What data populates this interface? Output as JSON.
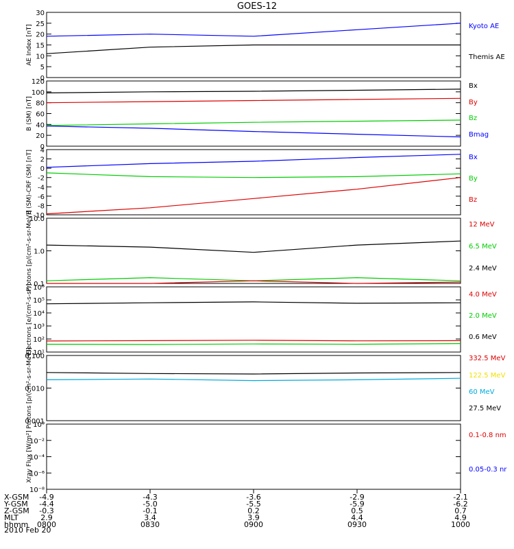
{
  "title": "GOES-12",
  "date_label": "2010 Feb 20",
  "colors": {
    "black": "#000000",
    "blue": "#0000ff",
    "green": "#00cc00",
    "red": "#dd0000",
    "yellow": "#f0e000",
    "cyan": "#00aadd"
  },
  "x_axis": {
    "rows": [
      {
        "label": "X-GSM",
        "values": [
          "-4.9",
          "-4.3",
          "-3.6",
          "-2.9",
          "-2.1"
        ]
      },
      {
        "label": "Y-GSM",
        "values": [
          "-4.4",
          "-5.0",
          "-5.5",
          "-5.9",
          "-6.2"
        ]
      },
      {
        "label": "Z-GSM",
        "values": [
          "-0.3",
          "-0.1",
          "0.2",
          "0.5",
          "0.7"
        ]
      },
      {
        "label": "MLT",
        "values": [
          "2.9",
          "3.4",
          "3.9",
          "4.4",
          "4.9"
        ]
      },
      {
        "label": "hhmm",
        "values": [
          "0800",
          "0830",
          "0900",
          "0930",
          "1000"
        ]
      }
    ]
  },
  "chart_data": [
    {
      "type": "line",
      "panel": "ae",
      "ylabel": "AE Index [nT]",
      "ylim": [
        0,
        30
      ],
      "y_ticks": [
        "0",
        "5",
        "10",
        "15",
        "20",
        "25",
        "30"
      ],
      "x": [
        "0800",
        "0830",
        "0900",
        "0930",
        "1000"
      ],
      "series": [
        {
          "name": "Kyoto AE",
          "color": "#0000ff",
          "values": [
            19,
            20,
            19,
            22,
            25
          ]
        },
        {
          "name": "Themis AE",
          "color": "#000000",
          "values": [
            11,
            14,
            15,
            15,
            15
          ]
        }
      ],
      "legend": [
        "Kyoto AE",
        "Themis AE"
      ]
    },
    {
      "type": "line",
      "panel": "b",
      "ylabel": "B (SM) [nT]",
      "ylim": [
        0,
        120
      ],
      "y_ticks": [
        "0",
        "20",
        "40",
        "60",
        "80",
        "100",
        "120"
      ],
      "x": [
        "0800",
        "0830",
        "0900",
        "0930",
        "1000"
      ],
      "series": [
        {
          "name": "Bx",
          "color": "#000000",
          "values": [
            98,
            100,
            101,
            103,
            105
          ]
        },
        {
          "name": "By",
          "color": "#dd0000",
          "values": [
            80,
            82,
            84,
            86,
            88
          ]
        },
        {
          "name": "Bz",
          "color": "#00cc00",
          "values": [
            38,
            41,
            44,
            46,
            48
          ]
        },
        {
          "name": "Bmag",
          "color": "#0000ff",
          "values": [
            37,
            33,
            27,
            22,
            17
          ]
        }
      ],
      "legend": [
        "Bx",
        "By",
        "Bz",
        "Bmag"
      ]
    },
    {
      "type": "line",
      "panel": "bdiff",
      "ylabel": "B (SM)-CRF (SM) [nT]",
      "ylim": [
        -10,
        4
      ],
      "y_ticks": [
        "-10",
        "-8",
        "-6",
        "-4",
        "-2",
        "0",
        "2",
        "4"
      ],
      "x": [
        "0800",
        "0830",
        "0900",
        "0930",
        "1000"
      ],
      "series": [
        {
          "name": "Bx",
          "color": "#0000ff",
          "values": [
            0.2,
            1,
            1.5,
            2.3,
            3
          ]
        },
        {
          "name": "By",
          "color": "#00cc00",
          "values": [
            -1,
            -1.8,
            -2,
            -1.8,
            -1.2
          ]
        },
        {
          "name": "Bz",
          "color": "#dd0000",
          "values": [
            -9.8,
            -8.5,
            -6.5,
            -4.5,
            -2
          ]
        }
      ],
      "legend": [
        "Bx",
        "By",
        "Bz"
      ]
    },
    {
      "type": "line",
      "panel": "protons",
      "ylabel": "Protons [p/(cm²-s-sr-MeV)]",
      "ylim": [
        0.1,
        10
      ],
      "log": true,
      "y_ticks": [
        "0.1",
        "1.0",
        "10.0"
      ],
      "x": [
        "0800",
        "0830",
        "0900",
        "0930",
        "1000"
      ],
      "series": [
        {
          "name": "2.4 MeV",
          "color": "#000000",
          "values": [
            1.5,
            1.3,
            0.9,
            1.5,
            2
          ]
        },
        {
          "name": "6.5 MeV",
          "color": "#00cc00",
          "values": [
            0.12,
            0.15,
            0.12,
            0.15,
            0.12
          ]
        },
        {
          "name": "12 MeV",
          "color": "#dd0000",
          "values": [
            0.1,
            0.1,
            0.12,
            0.1,
            0.11
          ]
        }
      ],
      "legend": [
        "12 MeV",
        "6.5 MeV",
        "2.4 MeV"
      ]
    },
    {
      "type": "line",
      "panel": "electrons",
      "ylabel": "Electrons [e/(cm²-s-sr)]",
      "ylim": [
        10,
        1000000
      ],
      "log": true,
      "y_ticks": [
        "10¹",
        "10²",
        "10³",
        "10⁴",
        "10⁵",
        "10⁶"
      ],
      "x": [
        "0800",
        "0830",
        "0900",
        "0930",
        "1000"
      ],
      "series": [
        {
          "name": "0.6 MeV",
          "color": "#000000",
          "values": [
            50000,
            60000,
            70000,
            55000,
            60000
          ]
        },
        {
          "name": "2.0 MeV",
          "color": "#00cc00",
          "values": [
            40,
            38,
            42,
            40,
            45
          ]
        },
        {
          "name": "4.0 MeV",
          "color": "#dd0000",
          "values": [
            70,
            75,
            80,
            72,
            75
          ]
        }
      ],
      "legend": [
        "4.0 MeV",
        "2.0 MeV",
        "0.6 MeV"
      ]
    },
    {
      "type": "line",
      "panel": "hiprotons",
      "ylabel": "Protons [p/(cm²-s-sr-MeV)]",
      "ylim": [
        0.001,
        0.1
      ],
      "log": true,
      "y_ticks": [
        "0.001",
        "0.010",
        "0.100"
      ],
      "x": [
        "0800",
        "0830",
        "0900",
        "0930",
        "1000"
      ],
      "series": [
        {
          "name": "27.5 MeV",
          "color": "#000000",
          "values": [
            0.03,
            0.028,
            0.027,
            0.029,
            0.03
          ]
        },
        {
          "name": "60 MeV",
          "color": "#00aadd",
          "values": [
            0.018,
            0.019,
            0.017,
            0.018,
            0.02
          ]
        }
      ],
      "legend": [
        "332.5 MeV",
        "122.5 MeV",
        "60 MeV",
        "27.5 MeV"
      ],
      "legend_colors": [
        "#dd0000",
        "#f0e000",
        "#00aadd",
        "#000000"
      ]
    },
    {
      "type": "line",
      "panel": "xray",
      "ylabel": "Xray Flux [W/m²]",
      "ylim": [
        1e-08,
        1
      ],
      "log": true,
      "y_ticks": [
        "10⁻⁸",
        "10⁻⁶",
        "10⁻⁴",
        "10⁻²",
        "10⁰"
      ],
      "x": [
        "0800",
        "0830",
        "0900",
        "0930",
        "1000"
      ],
      "series": [],
      "legend": [
        "0.1-0.8 nm",
        "0.05-0.3 nr"
      ],
      "legend_colors": [
        "#dd0000",
        "#0000ff"
      ]
    }
  ]
}
